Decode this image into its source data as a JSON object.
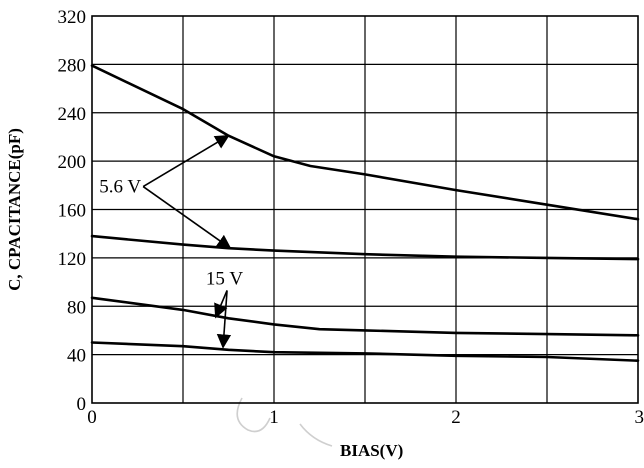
{
  "chart_data": {
    "type": "line",
    "xlabel": "BIAS(V)",
    "ylabel": "C, CPACITANCE(pF)",
    "xlim": [
      0,
      3
    ],
    "ylim": [
      0,
      320
    ],
    "x_ticks": [
      "0",
      "1",
      "2",
      "3"
    ],
    "y_ticks": [
      "0",
      "40",
      "80",
      "120",
      "160",
      "200",
      "240",
      "280",
      "320"
    ],
    "grid": true,
    "series": [
      {
        "points": [
          [
            0,
            279
          ],
          [
            0.5,
            243
          ],
          [
            0.75,
            221
          ],
          [
            1.0,
            204
          ],
          [
            1.2,
            196
          ],
          [
            1.5,
            189
          ],
          [
            2.0,
            176
          ],
          [
            2.5,
            164
          ],
          [
            3.0,
            152
          ]
        ]
      },
      {
        "points": [
          [
            0,
            138
          ],
          [
            0.5,
            131
          ],
          [
            0.75,
            128
          ],
          [
            1.0,
            126
          ],
          [
            1.5,
            123
          ],
          [
            2.0,
            121
          ],
          [
            2.5,
            120
          ],
          [
            3.0,
            119
          ]
        ]
      },
      {
        "points": [
          [
            0,
            87
          ],
          [
            0.5,
            77
          ],
          [
            0.75,
            70
          ],
          [
            1.0,
            65
          ],
          [
            1.25,
            61
          ],
          [
            1.5,
            60
          ],
          [
            2.0,
            58
          ],
          [
            2.5,
            57
          ],
          [
            3.0,
            56
          ]
        ]
      },
      {
        "points": [
          [
            0,
            50
          ],
          [
            0.5,
            47
          ],
          [
            0.75,
            44
          ],
          [
            1.0,
            42
          ],
          [
            1.5,
            41
          ],
          [
            2.0,
            39
          ],
          [
            2.5,
            38
          ],
          [
            3.0,
            35
          ]
        ]
      }
    ],
    "annotations": [
      {
        "text": "5.6 V",
        "tx": 0.27,
        "ty": 174,
        "arrows": [
          [
            0.75,
            221
          ],
          [
            0.76,
            128
          ]
        ]
      },
      {
        "text": "15 V",
        "tx": 0.83,
        "ty": 98,
        "arrows": [
          [
            0.68,
            71
          ],
          [
            0.72,
            46
          ]
        ]
      }
    ]
  }
}
